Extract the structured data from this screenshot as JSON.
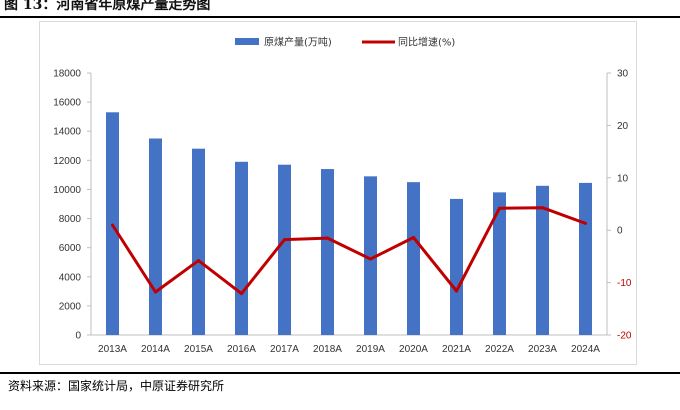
{
  "figure": {
    "title": "图 13：河南省年原煤产量走势图",
    "source": "资料来源：国家统计局，中原证券研究所"
  },
  "chart_data": {
    "type": "bar",
    "categories": [
      "2013A",
      "2014A",
      "2015A",
      "2016A",
      "2017A",
      "2018A",
      "2019A",
      "2020A",
      "2021A",
      "2022A",
      "2023A",
      "2024A"
    ],
    "series": [
      {
        "name": "原煤产量(万吨)",
        "type": "bar",
        "axis": "left",
        "color": "#4472c4",
        "values": [
          15300,
          13500,
          12800,
          11900,
          11700,
          11400,
          10900,
          10500,
          9350,
          9800,
          10250,
          10450
        ]
      },
      {
        "name": "同比增速(%)",
        "type": "line",
        "axis": "right",
        "color": "#c00000",
        "values": [
          1.0,
          -11.8,
          -5.8,
          -12.1,
          -1.8,
          -1.5,
          -5.5,
          -1.4,
          -11.6,
          4.2,
          4.3,
          1.3
        ]
      }
    ],
    "left_axis": {
      "min": 0,
      "max": 18000,
      "step": 2000,
      "ticks": [
        "0",
        "2000",
        "4000",
        "6000",
        "8000",
        "10000",
        "12000",
        "14000",
        "16000",
        "18000"
      ]
    },
    "right_axis": {
      "min": -20,
      "max": 30,
      "step": 10,
      "ticks": [
        "-20",
        "-10",
        "0",
        "10",
        "20",
        "30"
      ]
    },
    "legend_position": "top",
    "grid": false
  }
}
